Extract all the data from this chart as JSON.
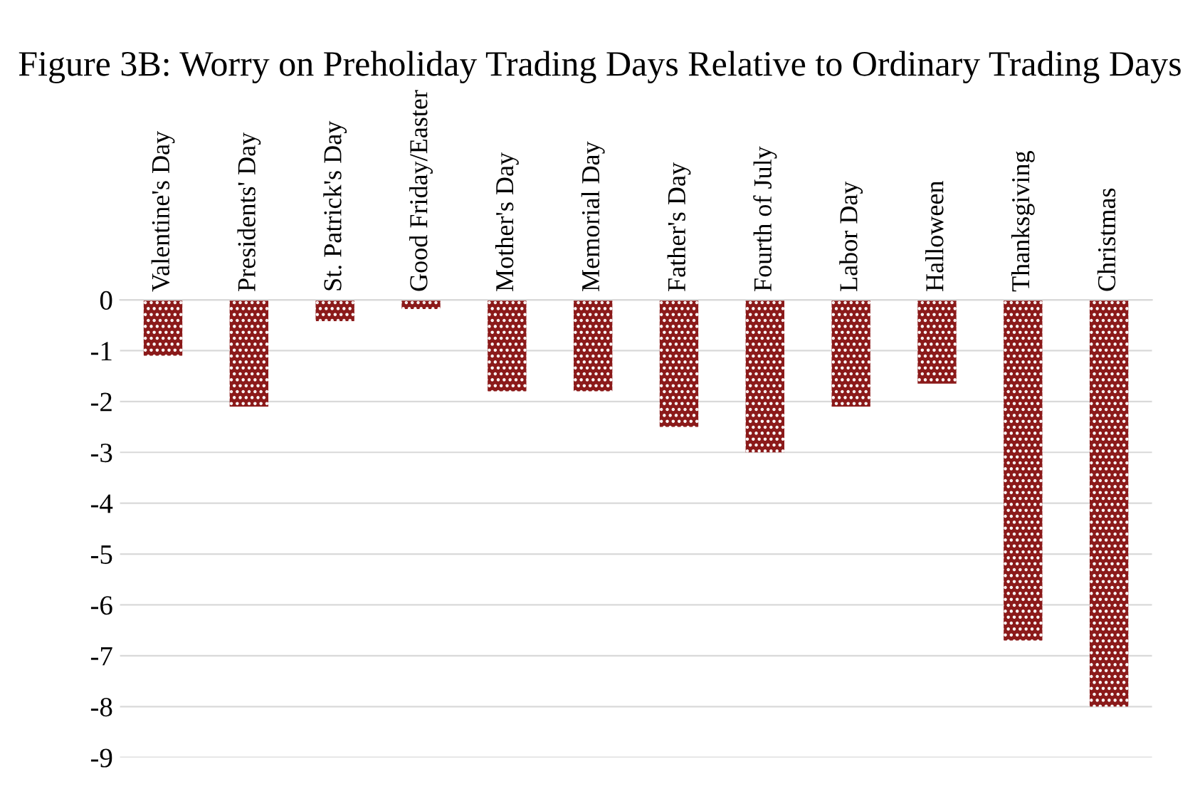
{
  "chart_data": {
    "type": "bar",
    "title": "Figure 3B: Worry on Preholiday Trading Days Relative to Ordinary Trading Days",
    "categories": [
      "Valentine's Day",
      "Presidents' Day",
      "St. Patrick's Day",
      "Good Friday/Easter",
      "Mother's Day",
      "Memorial Day",
      "Father's Day",
      "Fourth of July",
      "Labor Day",
      "Halloween",
      "Thanksgiving",
      "Christmas"
    ],
    "values": [
      -1.1,
      -2.1,
      -0.42,
      -0.18,
      -1.8,
      -1.8,
      -2.5,
      -3.0,
      -2.1,
      -1.65,
      -6.7,
      -8.0
    ],
    "color": "#8b1a1a",
    "ylim": [
      -9,
      0
    ],
    "yticks": [
      0,
      -1,
      -2,
      -3,
      -4,
      -5,
      -6,
      -7,
      -8,
      -9
    ],
    "grid": "y"
  }
}
